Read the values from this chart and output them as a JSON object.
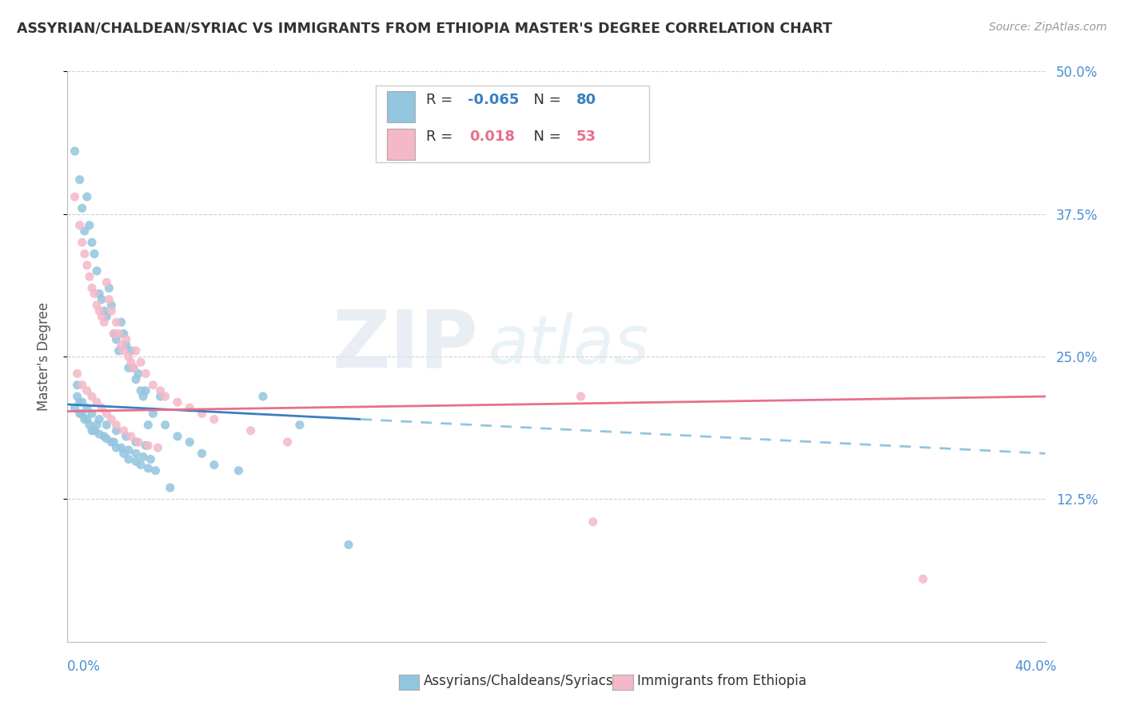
{
  "title": "ASSYRIAN/CHALDEAN/SYRIAC VS IMMIGRANTS FROM ETHIOPIA MASTER'S DEGREE CORRELATION CHART",
  "source": "Source: ZipAtlas.com",
  "ylabel": "Master's Degree",
  "xlim": [
    0.0,
    40.0
  ],
  "ylim": [
    0.0,
    50.0
  ],
  "yticks": [
    12.5,
    25.0,
    37.5,
    50.0
  ],
  "ytick_labels": [
    "12.5%",
    "25.0%",
    "37.5%",
    "50.0%"
  ],
  "legend_blue_r": "-0.065",
  "legend_blue_n": "80",
  "legend_pink_r": "0.018",
  "legend_pink_n": "53",
  "legend_label_blue": "Assyrians/Chaldeans/Syriacs",
  "legend_label_pink": "Immigrants from Ethiopia",
  "blue_color": "#92c5de",
  "pink_color": "#f4b8c8",
  "trend_blue_solid_color": "#3a7fc1",
  "trend_blue_dash_color": "#92c5de",
  "trend_pink_color": "#e8708a",
  "background_color": "#ffffff",
  "grid_color": "#d0d0d0",
  "watermark_zip": "ZIP",
  "watermark_atlas": "atlas",
  "blue_x": [
    0.3,
    0.5,
    0.6,
    0.7,
    0.8,
    0.9,
    1.0,
    1.1,
    1.2,
    1.3,
    1.4,
    1.5,
    1.6,
    1.7,
    1.8,
    1.9,
    2.0,
    2.1,
    2.2,
    2.3,
    2.4,
    2.5,
    2.6,
    2.7,
    2.8,
    2.9,
    3.0,
    3.1,
    3.2,
    3.3,
    3.5,
    3.8,
    4.0,
    4.5,
    5.0,
    5.5,
    6.0,
    7.0,
    8.0,
    9.5,
    0.4,
    0.5,
    0.6,
    0.8,
    1.0,
    1.2,
    1.5,
    1.8,
    2.0,
    2.3,
    2.5,
    2.8,
    3.0,
    3.3,
    3.6,
    0.3,
    0.5,
    0.7,
    0.9,
    1.1,
    1.3,
    1.6,
    1.9,
    2.2,
    2.5,
    2.8,
    3.1,
    3.4,
    11.5,
    0.4,
    0.6,
    0.8,
    1.0,
    1.3,
    1.6,
    2.0,
    2.4,
    2.8,
    3.2,
    4.2
  ],
  "blue_y": [
    43.0,
    40.5,
    38.0,
    36.0,
    39.0,
    36.5,
    35.0,
    34.0,
    32.5,
    30.5,
    30.0,
    29.0,
    28.5,
    31.0,
    29.5,
    27.0,
    26.5,
    25.5,
    28.0,
    27.0,
    26.0,
    24.0,
    25.5,
    24.0,
    23.0,
    23.5,
    22.0,
    21.5,
    22.0,
    19.0,
    20.0,
    21.5,
    19.0,
    18.0,
    17.5,
    16.5,
    15.5,
    15.0,
    21.5,
    19.0,
    22.5,
    21.0,
    20.0,
    19.5,
    18.5,
    19.0,
    18.0,
    17.5,
    17.0,
    16.5,
    16.0,
    15.8,
    15.5,
    15.2,
    15.0,
    20.5,
    20.0,
    19.5,
    19.0,
    18.5,
    18.2,
    17.8,
    17.5,
    17.0,
    16.8,
    16.5,
    16.2,
    16.0,
    8.5,
    21.5,
    21.0,
    20.5,
    20.0,
    19.5,
    19.0,
    18.5,
    18.0,
    17.5,
    17.2,
    13.5
  ],
  "pink_x": [
    0.3,
    0.5,
    0.6,
    0.7,
    0.8,
    0.9,
    1.0,
    1.1,
    1.2,
    1.3,
    1.4,
    1.5,
    1.6,
    1.7,
    1.8,
    1.9,
    2.0,
    2.1,
    2.2,
    2.3,
    2.4,
    2.5,
    2.6,
    2.7,
    2.8,
    3.0,
    3.2,
    3.5,
    3.8,
    4.0,
    4.5,
    5.0,
    5.5,
    6.0,
    7.5,
    9.0,
    0.4,
    0.6,
    0.8,
    1.0,
    1.2,
    1.4,
    1.6,
    1.8,
    2.0,
    2.3,
    2.6,
    2.9,
    3.3,
    3.7,
    21.0,
    21.5,
    35.0
  ],
  "pink_y": [
    39.0,
    36.5,
    35.0,
    34.0,
    33.0,
    32.0,
    31.0,
    30.5,
    29.5,
    29.0,
    28.5,
    28.0,
    31.5,
    30.0,
    29.0,
    27.0,
    28.0,
    27.0,
    26.0,
    25.5,
    26.5,
    25.0,
    24.5,
    24.0,
    25.5,
    24.5,
    23.5,
    22.5,
    22.0,
    21.5,
    21.0,
    20.5,
    20.0,
    19.5,
    18.5,
    17.5,
    23.5,
    22.5,
    22.0,
    21.5,
    21.0,
    20.5,
    20.0,
    19.5,
    19.0,
    18.5,
    18.0,
    17.5,
    17.2,
    17.0,
    21.5,
    10.5,
    5.5
  ],
  "trend_blue_x0": 0.0,
  "trend_blue_y0": 20.8,
  "trend_blue_x1": 12.0,
  "trend_blue_y1": 19.5,
  "trend_blue_x2": 40.0,
  "trend_blue_y2": 16.5,
  "trend_pink_x0": 0.0,
  "trend_pink_y0": 20.2,
  "trend_pink_x1": 40.0,
  "trend_pink_y1": 21.5
}
